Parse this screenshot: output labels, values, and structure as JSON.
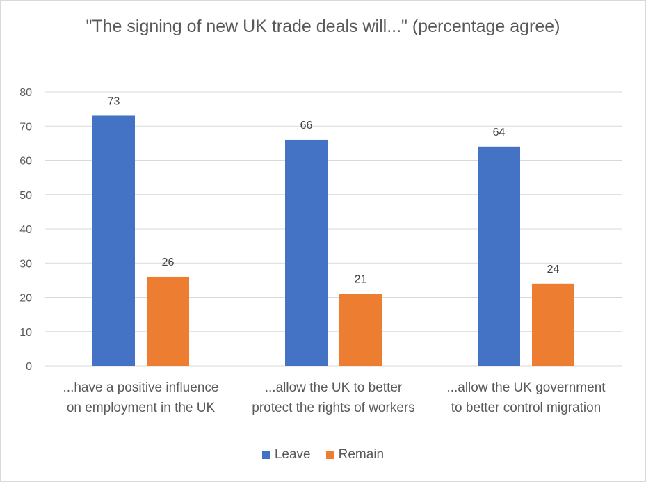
{
  "chart_data": {
    "type": "bar",
    "title": "\"The signing of new UK trade deals will...\" (percentage agree)",
    "categories": [
      [
        "...have a positive influence",
        "on employment in the UK"
      ],
      [
        "...allow the UK to better",
        "protect the rights of workers"
      ],
      [
        "...allow the UK government",
        "to better control migration"
      ]
    ],
    "series": [
      {
        "name": "Leave",
        "color": "#4472c4",
        "values": [
          73,
          66,
          64
        ]
      },
      {
        "name": "Remain",
        "color": "#ed7d31",
        "values": [
          26,
          21,
          24
        ]
      }
    ],
    "ylim": [
      0,
      80
    ],
    "yticks": [
      0,
      10,
      20,
      30,
      40,
      50,
      60,
      70,
      80
    ],
    "grid": true,
    "legend": "bottom",
    "xlabel": "",
    "ylabel": ""
  }
}
